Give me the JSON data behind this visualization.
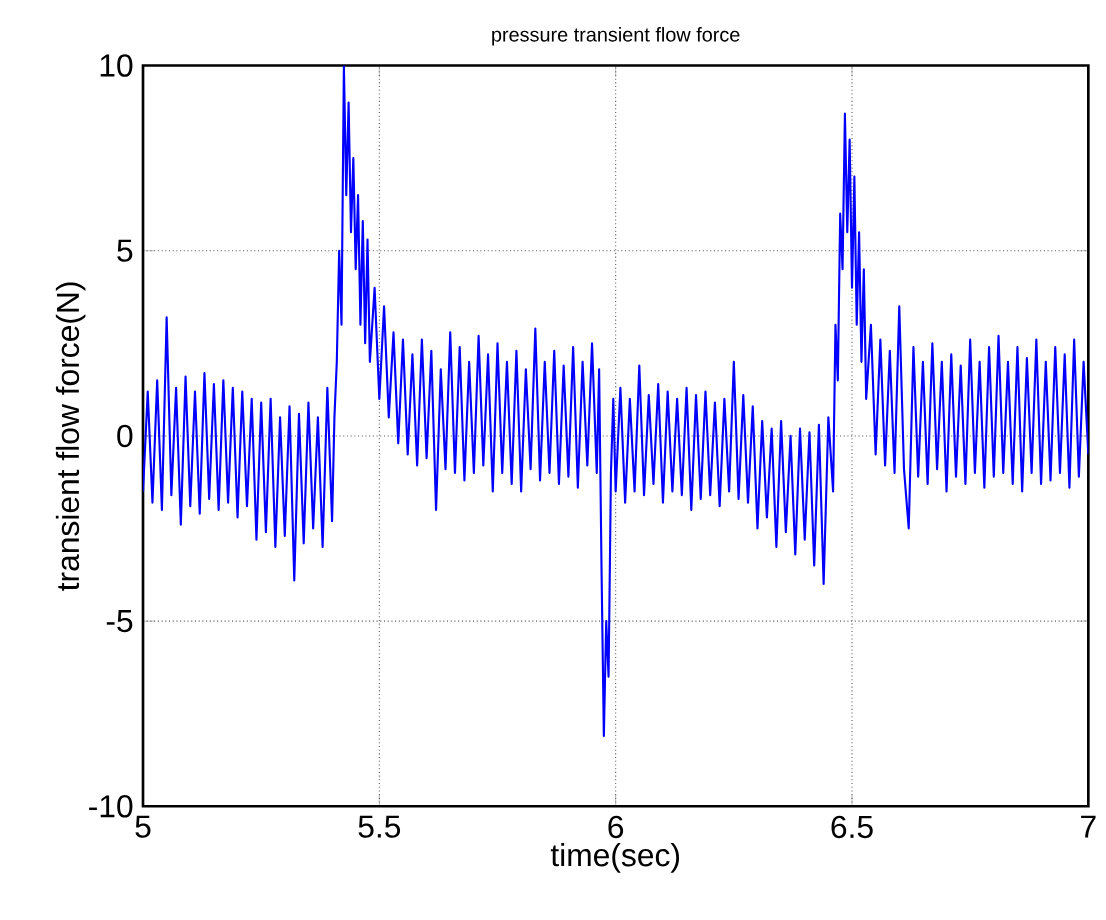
{
  "chart_data": {
    "type": "line",
    "title": "pressure transient flow force",
    "xlabel": "time(sec)",
    "ylabel": "transient flow force(N)",
    "xlim": [
      5,
      7
    ],
    "ylim": [
      -10,
      10
    ],
    "xticks": [
      5,
      5.5,
      6,
      6.5,
      7
    ],
    "yticks": [
      -10,
      -5,
      0,
      5,
      10
    ],
    "grid": true,
    "line_style": "solid",
    "series": [
      {
        "color": "#0000ff",
        "x": [
          5.0,
          5.01,
          5.02,
          5.03,
          5.04,
          5.05,
          5.06,
          5.07,
          5.08,
          5.09,
          5.1,
          5.11,
          5.12,
          5.13,
          5.14,
          5.15,
          5.16,
          5.17,
          5.18,
          5.19,
          5.2,
          5.21,
          5.22,
          5.23,
          5.24,
          5.25,
          5.26,
          5.27,
          5.28,
          5.29,
          5.3,
          5.31,
          5.32,
          5.33,
          5.34,
          5.35,
          5.36,
          5.37,
          5.38,
          5.39,
          5.4,
          5.405,
          5.41,
          5.415,
          5.42,
          5.425,
          5.43,
          5.435,
          5.44,
          5.445,
          5.45,
          5.455,
          5.46,
          5.465,
          5.47,
          5.475,
          5.48,
          5.49,
          5.5,
          5.51,
          5.52,
          5.53,
          5.54,
          5.55,
          5.56,
          5.57,
          5.58,
          5.59,
          5.6,
          5.61,
          5.62,
          5.63,
          5.64,
          5.65,
          5.66,
          5.67,
          5.68,
          5.69,
          5.7,
          5.71,
          5.72,
          5.73,
          5.74,
          5.75,
          5.76,
          5.77,
          5.78,
          5.79,
          5.8,
          5.81,
          5.82,
          5.83,
          5.84,
          5.85,
          5.86,
          5.87,
          5.88,
          5.89,
          5.9,
          5.91,
          5.92,
          5.93,
          5.94,
          5.95,
          5.96,
          5.965,
          5.97,
          5.975,
          5.98,
          5.985,
          5.99,
          5.995,
          6.0,
          6.01,
          6.02,
          6.03,
          6.04,
          6.05,
          6.06,
          6.07,
          6.08,
          6.09,
          6.1,
          6.11,
          6.12,
          6.13,
          6.14,
          6.15,
          6.16,
          6.17,
          6.18,
          6.19,
          6.2,
          6.21,
          6.22,
          6.23,
          6.24,
          6.25,
          6.26,
          6.27,
          6.28,
          6.29,
          6.3,
          6.31,
          6.32,
          6.33,
          6.34,
          6.35,
          6.36,
          6.37,
          6.38,
          6.39,
          6.4,
          6.41,
          6.42,
          6.43,
          6.44,
          6.45,
          6.46,
          6.465,
          6.47,
          6.475,
          6.48,
          6.485,
          6.49,
          6.495,
          6.5,
          6.505,
          6.51,
          6.515,
          6.52,
          6.525,
          6.53,
          6.54,
          6.55,
          6.56,
          6.57,
          6.58,
          6.59,
          6.6,
          6.61,
          6.62,
          6.63,
          6.64,
          6.65,
          6.66,
          6.67,
          6.68,
          6.69,
          6.7,
          6.71,
          6.72,
          6.73,
          6.74,
          6.75,
          6.76,
          6.77,
          6.78,
          6.79,
          6.8,
          6.81,
          6.82,
          6.83,
          6.84,
          6.85,
          6.86,
          6.87,
          6.88,
          6.89,
          6.9,
          6.91,
          6.92,
          6.93,
          6.94,
          6.95,
          6.96,
          6.97,
          6.98,
          6.99,
          7.0
        ],
        "values": [
          -1.5,
          1.2,
          -1.8,
          1.5,
          -2.0,
          3.2,
          -1.6,
          1.3,
          -2.4,
          1.6,
          -1.9,
          1.2,
          -2.1,
          1.7,
          -1.7,
          1.4,
          -2.0,
          1.5,
          -1.8,
          1.3,
          -2.2,
          1.2,
          -1.9,
          1.0,
          -2.8,
          0.9,
          -2.6,
          1.0,
          -3.0,
          0.5,
          -2.7,
          0.8,
          -3.9,
          0.6,
          -2.9,
          0.9,
          -2.5,
          0.5,
          -3.0,
          1.3,
          -2.3,
          0.5,
          2.0,
          5.0,
          3.0,
          10.0,
          6.5,
          9.0,
          5.5,
          7.5,
          4.5,
          6.5,
          3.0,
          5.8,
          2.5,
          5.3,
          2.0,
          4.0,
          1.0,
          3.5,
          0.5,
          2.8,
          -0.2,
          2.6,
          -0.5,
          2.2,
          -0.8,
          2.6,
          -0.6,
          2.3,
          -2.0,
          1.8,
          -0.9,
          2.8,
          -1.0,
          2.4,
          -1.2,
          2.0,
          -1.0,
          2.7,
          -0.8,
          2.2,
          -1.5,
          2.5,
          -1.0,
          2.0,
          -1.3,
          2.3,
          -1.5,
          1.8,
          -0.9,
          2.9,
          -1.2,
          2.0,
          -1.0,
          2.3,
          -1.3,
          1.9,
          -1.1,
          2.4,
          -1.4,
          2.0,
          -0.8,
          2.5,
          -1.0,
          1.8,
          -3.5,
          -8.1,
          -5.0,
          -6.5,
          -1.0,
          1.0,
          -1.5,
          1.3,
          -1.8,
          1.0,
          -1.5,
          1.9,
          -1.6,
          1.1,
          -1.3,
          1.4,
          -1.8,
          1.2,
          -1.5,
          1.0,
          -1.6,
          1.3,
          -2.0,
          1.1,
          -1.7,
          1.2,
          -1.6,
          0.9,
          -1.9,
          1.0,
          -1.5,
          2.0,
          -1.7,
          1.1,
          -1.8,
          0.8,
          -2.5,
          0.4,
          -2.2,
          0.2,
          -3.0,
          0.4,
          -2.6,
          0.0,
          -3.2,
          0.2,
          -2.8,
          0.1,
          -3.5,
          0.3,
          -4.0,
          0.5,
          -1.5,
          3.0,
          1.5,
          6.0,
          4.5,
          8.7,
          5.5,
          8.0,
          4.0,
          7.0,
          3.0,
          5.5,
          2.0,
          4.5,
          1.0,
          3.0,
          -0.5,
          2.6,
          -0.8,
          2.3,
          -1.0,
          3.5,
          -0.9,
          -2.5,
          2.4,
          -1.1,
          2.0,
          -1.3,
          2.5,
          -0.9,
          2.0,
          -1.5,
          2.2,
          -1.1,
          1.9,
          -1.3,
          2.6,
          -1.0,
          2.0,
          -1.4,
          2.4,
          -1.1,
          2.7,
          -1.0,
          2.0,
          -1.3,
          2.4,
          -1.5,
          2.1,
          -1.0,
          2.6,
          -1.3,
          2.0,
          -1.2,
          2.4,
          -1.0,
          2.2,
          -1.4,
          2.6,
          -1.1,
          2.0,
          -0.5
        ]
      }
    ]
  }
}
